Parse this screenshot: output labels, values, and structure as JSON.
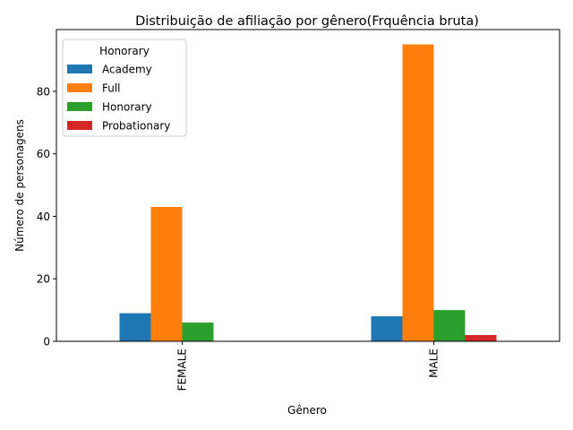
{
  "chart_data": {
    "type": "bar",
    "title": "Distribuição de afiliação por gênero(Frquência bruta)",
    "xlabel": "Gênero",
    "ylabel": "Número de personagens",
    "categories": [
      "FEMALE",
      "MALE"
    ],
    "ylim": [
      0,
      99.75
    ],
    "yticks": [
      0,
      20,
      40,
      60,
      80
    ],
    "grid": false,
    "legend": {
      "title": "Honorary",
      "placement": "top-left"
    },
    "series": [
      {
        "name": "Academy",
        "color": "#1f77b4",
        "values": [
          9,
          8
        ]
      },
      {
        "name": "Full",
        "color": "#ff7f0e",
        "values": [
          43,
          95
        ]
      },
      {
        "name": "Honorary",
        "color": "#2ca02c",
        "values": [
          6,
          10
        ]
      },
      {
        "name": "Probationary",
        "color": "#d62728",
        "values": [
          0,
          2
        ]
      }
    ]
  }
}
